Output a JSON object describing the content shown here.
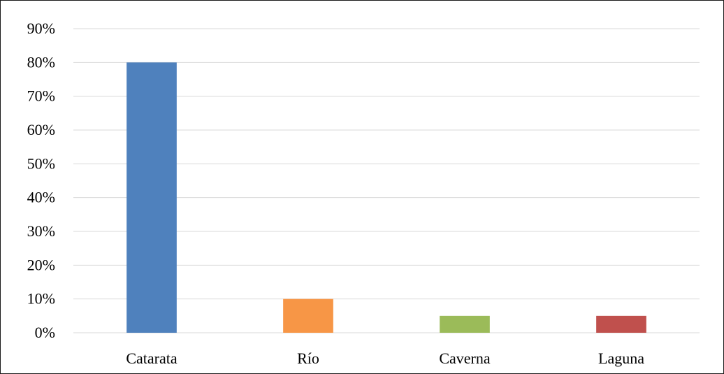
{
  "chart_data": {
    "type": "bar",
    "categories": [
      "Catarata",
      "Río",
      "Caverna",
      "Laguna"
    ],
    "values": [
      80,
      10,
      5,
      5
    ],
    "colors": [
      "#4f81bd",
      "#f79646",
      "#9bbb59",
      "#c0504d"
    ],
    "ylim": [
      0,
      90
    ],
    "y_ticks": [
      {
        "value": 0,
        "label": "0%"
      },
      {
        "value": 10,
        "label": "10%"
      },
      {
        "value": 20,
        "label": "20%"
      },
      {
        "value": 30,
        "label": "30%"
      },
      {
        "value": 40,
        "label": "40%"
      },
      {
        "value": 50,
        "label": "50%"
      },
      {
        "value": 60,
        "label": "60%"
      },
      {
        "value": 70,
        "label": "70%"
      },
      {
        "value": 80,
        "label": "80%"
      },
      {
        "value": 90,
        "label": "90%"
      }
    ],
    "grid": true,
    "gridline_color": "#d9d9d9",
    "legend": "none"
  }
}
